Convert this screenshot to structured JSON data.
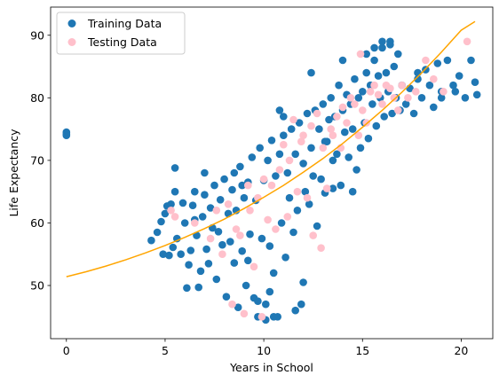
{
  "chart_data": {
    "type": "scatter",
    "title": "",
    "xlabel": "Years in School",
    "ylabel": "Life Expectancy",
    "xlim": [
      -0.8,
      21.6
    ],
    "ylim": [
      41.5,
      94.5
    ],
    "xticks": [
      0,
      5,
      10,
      15,
      20
    ],
    "yticks": [
      50,
      60,
      70,
      80,
      90
    ],
    "grid": false,
    "legend_position": "top-left",
    "series": [
      {
        "name": "Training Data",
        "kind": "scatter",
        "color": "#1f77b4",
        "cluster_note": "dense cloud of several hundred points; listed values are representative readings",
        "x": [
          0.0,
          0.0,
          0.0,
          4.3,
          4.6,
          4.8,
          4.9,
          5.0,
          5.1,
          5.2,
          5.3,
          5.4,
          5.5,
          5.6,
          5.8,
          5.9,
          6.0,
          6.1,
          6.2,
          6.3,
          6.4,
          6.5,
          6.6,
          6.7,
          6.8,
          6.9,
          7.0,
          7.1,
          7.2,
          7.3,
          7.4,
          7.5,
          7.6,
          7.7,
          7.8,
          7.9,
          8.0,
          8.1,
          8.2,
          8.3,
          8.4,
          8.5,
          8.6,
          8.7,
          8.8,
          8.9,
          9.0,
          9.1,
          9.2,
          9.3,
          9.4,
          9.5,
          9.6,
          9.7,
          9.8,
          9.9,
          10.0,
          10.1,
          10.2,
          10.3,
          10.4,
          10.5,
          10.6,
          10.7,
          10.8,
          10.9,
          11.0,
          11.1,
          11.2,
          11.3,
          11.4,
          11.5,
          11.6,
          11.7,
          11.8,
          11.9,
          12.0,
          12.1,
          12.2,
          12.3,
          12.4,
          12.5,
          12.6,
          12.7,
          12.8,
          12.9,
          13.0,
          13.1,
          13.2,
          13.3,
          13.4,
          13.5,
          13.6,
          13.7,
          13.8,
          13.9,
          14.0,
          14.1,
          14.2,
          14.3,
          14.4,
          14.5,
          14.6,
          14.7,
          14.8,
          14.9,
          15.0,
          15.1,
          15.2,
          15.3,
          15.4,
          15.5,
          15.6,
          15.7,
          15.8,
          15.9,
          16.0,
          16.1,
          16.2,
          16.3,
          16.4,
          16.5,
          16.6,
          16.7,
          16.8,
          16.9,
          17.0,
          17.2,
          17.4,
          17.6,
          17.8,
          18.0,
          18.2,
          18.4,
          18.6,
          18.8,
          19.0,
          19.3,
          19.6,
          19.9,
          20.2,
          20.5,
          20.7,
          20.8,
          10.1,
          10.3,
          10.5,
          9.7,
          11.6,
          8.5,
          8.9,
          9.2,
          12.0,
          13.5,
          13.1,
          6.5,
          5.5,
          7.0,
          16.0,
          16.4,
          15.2,
          15.6,
          14.0,
          12.4,
          11.0,
          10.8,
          14.5,
          17.8,
          19.0,
          19.7
        ],
        "y": [
          74.0,
          74.5,
          74.2,
          57.2,
          58.5,
          60.2,
          55.0,
          61.5,
          62.7,
          54.8,
          63.0,
          56.1,
          68.8,
          57.5,
          55.0,
          63.2,
          60.0,
          49.6,
          53.3,
          55.6,
          62.8,
          60.5,
          58.0,
          49.7,
          52.3,
          61.0,
          64.5,
          55.8,
          53.5,
          62.4,
          59.2,
          66.0,
          51.0,
          58.6,
          63.7,
          56.5,
          67.0,
          48.2,
          61.5,
          57.0,
          65.3,
          53.6,
          62.0,
          46.5,
          69.0,
          55.5,
          64.0,
          50.0,
          66.5,
          58.2,
          70.5,
          48.0,
          63.6,
          45.0,
          72.0,
          57.5,
          66.8,
          44.5,
          70.0,
          56.3,
          73.2,
          52.0,
          67.5,
          45.0,
          71.0,
          60.0,
          74.0,
          54.5,
          68.0,
          64.0,
          75.0,
          58.5,
          71.0,
          62.0,
          76.0,
          47.0,
          69.5,
          65.0,
          77.5,
          63.0,
          72.0,
          67.5,
          78.0,
          59.5,
          75.0,
          67.0,
          79.0,
          64.8,
          73.0,
          76.5,
          80.0,
          70.0,
          77.0,
          71.0,
          82.0,
          66.0,
          78.0,
          74.5,
          80.5,
          70.5,
          79.0,
          75.0,
          83.0,
          68.5,
          80.0,
          72.0,
          81.0,
          76.0,
          84.0,
          73.5,
          82.0,
          79.0,
          86.0,
          75.5,
          83.5,
          80.0,
          88.0,
          77.0,
          84.0,
          81.0,
          89.0,
          77.5,
          85.0,
          80.0,
          87.0,
          78.0,
          82.0,
          79.0,
          81.5,
          77.5,
          83.0,
          80.0,
          84.5,
          82.0,
          78.5,
          85.5,
          81.0,
          86.0,
          82.0,
          83.5,
          80.0,
          86.0,
          82.5,
          80.5,
          47.0,
          49.0,
          45.0,
          47.5,
          46.0,
          68.0,
          66.0,
          54.0,
          50.5,
          65.5,
          73.0,
          65.0,
          65.0,
          68.0,
          89.0,
          88.5,
          87.0,
          88.0,
          86.0,
          84.0,
          77.0,
          78.0,
          65.0,
          84.0,
          80.0,
          81.0
        ]
      },
      {
        "name": "Testing Data",
        "kind": "scatter",
        "color": "#ffc0cb",
        "x": [
          5.3,
          5.5,
          6.5,
          7.3,
          7.6,
          7.9,
          8.2,
          8.4,
          8.6,
          8.8,
          9.0,
          9.2,
          9.3,
          9.5,
          9.7,
          9.9,
          10.0,
          10.2,
          10.4,
          10.6,
          10.8,
          11.0,
          11.2,
          11.3,
          11.5,
          11.7,
          11.9,
          12.0,
          12.2,
          12.4,
          12.5,
          12.7,
          12.9,
          13.0,
          13.2,
          13.4,
          13.5,
          13.7,
          13.9,
          14.0,
          14.2,
          14.4,
          14.6,
          14.8,
          15.0,
          15.2,
          15.4,
          15.6,
          15.8,
          16.0,
          16.2,
          16.4,
          16.6,
          16.8,
          17.0,
          17.3,
          17.7,
          18.2,
          18.6,
          19.1,
          20.3,
          14.9
        ],
        "y": [
          62.0,
          61.0,
          60.0,
          57.5,
          62.0,
          55.0,
          63.0,
          47.0,
          59.0,
          58.0,
          45.5,
          66.0,
          62.0,
          53.0,
          64.0,
          45.0,
          67.0,
          60.5,
          66.0,
          59.0,
          68.5,
          72.5,
          61.0,
          70.0,
          76.5,
          65.0,
          73.0,
          74.0,
          64.0,
          75.5,
          58.0,
          77.5,
          56.0,
          72.0,
          65.5,
          75.0,
          74.0,
          77.0,
          72.0,
          78.5,
          76.0,
          80.0,
          79.0,
          74.0,
          78.0,
          76.0,
          81.0,
          82.0,
          80.5,
          79.0,
          82.0,
          81.5,
          80.0,
          78.0,
          82.0,
          80.0,
          81.0,
          86.0,
          83.0,
          81.0,
          89.0,
          87.0
        ]
      },
      {
        "name": "",
        "kind": "line",
        "color": "#ffa500",
        "x": [
          0,
          1,
          2,
          3,
          4,
          5,
          6,
          7,
          8,
          9,
          10,
          11,
          12,
          13,
          14,
          15,
          16,
          17,
          18,
          19,
          20,
          20.7
        ],
        "y": [
          51.4,
          52.2,
          53.1,
          54.1,
          55.2,
          56.4,
          57.7,
          59.1,
          60.6,
          62.3,
          64.1,
          66.0,
          68.1,
          70.3,
          72.7,
          75.3,
          78.0,
          80.9,
          84.0,
          87.3,
          90.8,
          92.2
        ]
      }
    ]
  }
}
